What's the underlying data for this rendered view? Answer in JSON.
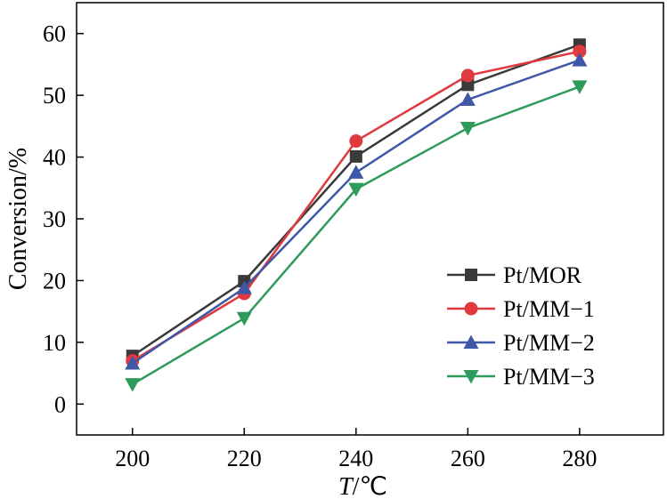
{
  "chart_data": {
    "type": "line",
    "title": "",
    "xlabel_italic": "T",
    "xlabel_unit": "/℃",
    "ylabel": "Conversion/%",
    "x": [
      200,
      220,
      240,
      260,
      280
    ],
    "x_ticks": [
      "200",
      "220",
      "240",
      "260",
      "280"
    ],
    "y_ticks": [
      "0",
      "10",
      "20",
      "30",
      "40",
      "50",
      "60"
    ],
    "xlim": [
      190,
      295
    ],
    "ylim": [
      -5,
      65
    ],
    "grid": false,
    "legend_position": "bottom-right",
    "series": [
      {
        "name": "Pt/MOR",
        "color": "#3a3a3a",
        "marker": "square",
        "values": [
          7.8,
          19.9,
          40.1,
          51.7,
          58.2
        ]
      },
      {
        "name": "Pt/MM−1",
        "color": "#e0393e",
        "marker": "circle",
        "values": [
          7.0,
          17.9,
          42.6,
          53.2,
          57.1
        ]
      },
      {
        "name": "Pt/MM−2",
        "color": "#3f57a6",
        "marker": "triangle-up",
        "values": [
          6.6,
          18.8,
          37.5,
          49.3,
          55.7
        ]
      },
      {
        "name": "Pt/MM−3",
        "color": "#2e9a5b",
        "marker": "triangle-down",
        "values": [
          3.2,
          13.9,
          34.8,
          44.7,
          51.4
        ]
      }
    ]
  }
}
